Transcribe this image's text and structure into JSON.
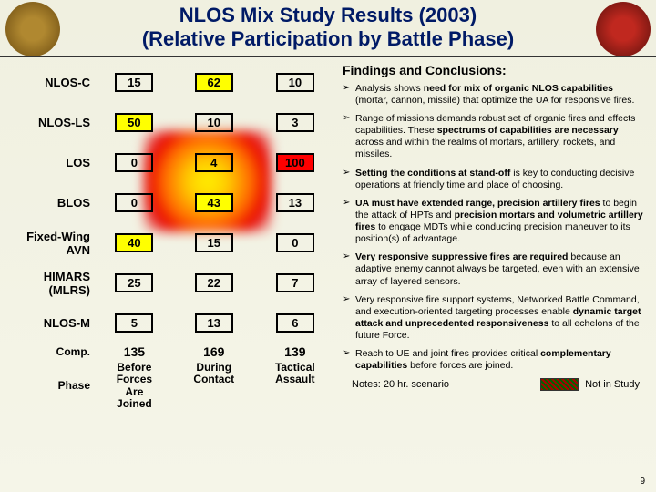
{
  "header": {
    "title_line1": "NLOS Mix Study Results (2003)",
    "title_line2": "(Relative Participation by Battle Phase)"
  },
  "table": {
    "row_labels": [
      "NLOS-C",
      "NLOS-LS",
      "LOS",
      "BLOS",
      "Fixed-Wing AVN",
      "HIMARS (MLRS)",
      "NLOS-M"
    ],
    "comp_label": "Comp.",
    "phase_label": "Phase",
    "col_headers": [
      "Before Forces Are Joined",
      "During Contact",
      "Tactical Assault"
    ],
    "rows": [
      {
        "v": [
          "15",
          "62",
          "10"
        ],
        "hi": [
          0,
          1,
          0
        ]
      },
      {
        "v": [
          "50",
          "10",
          "3"
        ],
        "hi": [
          1,
          0,
          0
        ]
      },
      {
        "v": [
          "0",
          "4",
          "100"
        ],
        "hi": [
          0,
          0,
          2
        ]
      },
      {
        "v": [
          "0",
          "43",
          "13"
        ],
        "hi": [
          0,
          1,
          0
        ]
      },
      {
        "v": [
          "40",
          "15",
          "0"
        ],
        "hi": [
          1,
          0,
          0
        ]
      },
      {
        "v": [
          "25",
          "22",
          "7"
        ],
        "hi": [
          0,
          0,
          0
        ]
      },
      {
        "v": [
          "5",
          "13",
          "6"
        ],
        "hi": [
          0,
          0,
          0
        ]
      }
    ],
    "comp": [
      "135",
      "169",
      "139"
    ]
  },
  "findings": {
    "heading": "Findings and Conclusions:",
    "items": [
      "Analysis shows <b>need for mix of organic NLOS capabilities</b> (mortar, cannon, missile) that optimize the UA for responsive fires.",
      "Range of missions demands robust set of organic fires and effects capabilities. These <b>spectrums of capabilities are necessary</b> across and within the realms of mortars, artillery, rockets, and missiles.",
      "<b>Setting the conditions at stand-off</b> is key to conducting decisive operations at friendly time and place of choosing.",
      "<b>UA must have extended range, precision artillery fires</b> to begin the attack of HPTs and <b>precision mortars and volumetric artillery fires</b> to engage MDTs while conducting precision maneuver to its position(s) of advantage.",
      "<b>Very responsive suppressive fires are required</b> because an adaptive enemy cannot always be targeted, even with an extensive array of layered sensors.",
      "Very responsive fire support systems, Networked Battle Command, and execution-oriented targeting processes enable <b>dynamic target attack and unprecedented responsiveness</b> to all echelons of the future Force.",
      "Reach to UE and joint fires provides critical <b>complementary capabilities</b> before forces are joined."
    ]
  },
  "footer": {
    "notes": "Notes: 20 hr. scenario",
    "legend": "Not in Study",
    "page": "9"
  },
  "colors": {
    "title": "#001a66",
    "highlight_yellow": "#ffff00",
    "highlight_red": "#ff0000"
  }
}
